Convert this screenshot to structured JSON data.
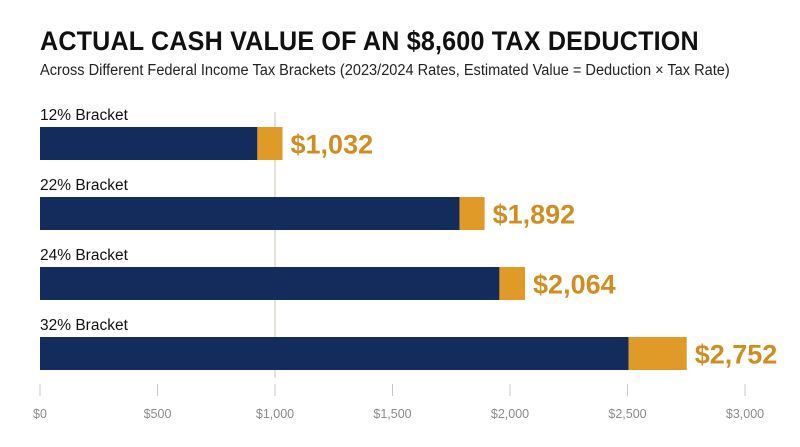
{
  "chart_data": {
    "type": "bar",
    "orientation": "horizontal",
    "stacked": true,
    "title": "ACTUAL CASH VALUE OF AN $8,600 TAX DEDUCTION",
    "subtitle": "Across Different Federal Income Tax Brackets (2023/2024 Rates, Estimated Value = Deduction × Tax Rate)",
    "categories": [
      "12% Bracket",
      "22% Bracket",
      "24% Bracket",
      "32% Bracket"
    ],
    "series": [
      {
        "values": [
          925,
          1785,
          1955,
          2505
        ],
        "color": "#142c5c"
      },
      {
        "values": [
          107,
          107,
          109,
          247
        ],
        "color": "#e09a28"
      }
    ],
    "totals": [
      1032,
      1892,
      2064,
      2752
    ],
    "data_labels": [
      "$1,032",
      "$1,892",
      "$2,064",
      "$2,752"
    ],
    "data_label_color": "#d08d22",
    "xlim": [
      0,
      3000
    ],
    "xticks": [
      0,
      500,
      1000,
      1500,
      2000,
      2500,
      3000
    ],
    "xtick_labels": [
      "$0",
      "$500",
      "$1,000",
      "$1,500",
      "$2,000",
      "$2,500",
      "$3,000"
    ],
    "reference_line": 1000,
    "grid": false,
    "legend": "none"
  }
}
